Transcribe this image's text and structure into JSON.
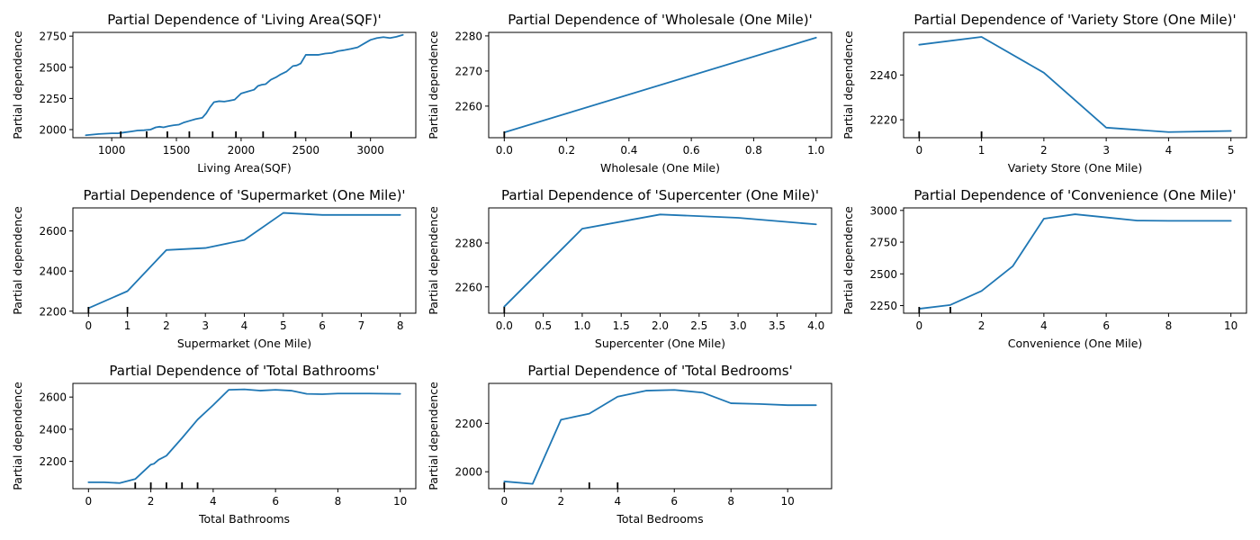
{
  "chart_data": [
    {
      "type": "line",
      "title": "Partial Dependence of 'Living Area(SQF)'",
      "xlabel": "Living Area(SQF)",
      "ylabel": "Partial dependence",
      "xlim": [
        700,
        3350
      ],
      "ylim": [
        1935,
        2780
      ],
      "xticks": [
        1000,
        1500,
        2000,
        2500,
        3000
      ],
      "yticks": [
        2000,
        2250,
        2500,
        2750
      ],
      "series": [
        {
          "color": "#1f77b4",
          "x": [
            800,
            900,
            1000,
            1050,
            1100,
            1150,
            1200,
            1250,
            1300,
            1340,
            1370,
            1400,
            1440,
            1480,
            1520,
            1560,
            1600,
            1650,
            1700,
            1730,
            1760,
            1790,
            1830,
            1870,
            1900,
            1950,
            2000,
            2050,
            2100,
            2130,
            2160,
            2190,
            2230,
            2270,
            2300,
            2350,
            2400,
            2430,
            2460,
            2500,
            2540,
            2600,
            2650,
            2700,
            2750,
            2800,
            2850,
            2900,
            2950,
            3000,
            3050,
            3100,
            3150,
            3200,
            3250
          ],
          "y": [
            1955,
            1965,
            1970,
            1970,
            1978,
            1985,
            1993,
            1995,
            2000,
            2018,
            2023,
            2018,
            2028,
            2035,
            2040,
            2058,
            2070,
            2085,
            2095,
            2130,
            2180,
            2220,
            2228,
            2225,
            2230,
            2240,
            2290,
            2305,
            2320,
            2350,
            2360,
            2365,
            2400,
            2420,
            2440,
            2465,
            2510,
            2515,
            2530,
            2600,
            2600,
            2600,
            2610,
            2615,
            2630,
            2638,
            2648,
            2660,
            2690,
            2720,
            2735,
            2742,
            2735,
            2745,
            2760
          ]
        }
      ],
      "rug": [
        1070,
        1270,
        1430,
        1600,
        1780,
        1960,
        2170,
        2420,
        2850
      ]
    },
    {
      "type": "line",
      "title": "Partial Dependence of 'Wholesale (One Mile)'",
      "xlabel": "Wholesale (One Mile)",
      "ylabel": "Partial dependence",
      "xlim": [
        -0.05,
        1.05
      ],
      "ylim": [
        2251,
        2281
      ],
      "xticks": [
        0.0,
        0.2,
        0.4,
        0.6,
        0.8,
        1.0
      ],
      "yticks": [
        2260,
        2270,
        2280
      ],
      "series": [
        {
          "color": "#1f77b4",
          "x": [
            0,
            1
          ],
          "y": [
            2252.5,
            2279.5
          ]
        }
      ],
      "rug": [
        0
      ]
    },
    {
      "type": "line",
      "title": "Partial Dependence of 'Variety Store (One Mile)'",
      "xlabel": "Variety Store (One Mile)",
      "ylabel": "Partial dependence",
      "xlim": [
        -0.25,
        5.25
      ],
      "ylim": [
        2212,
        2259
      ],
      "xticks": [
        0,
        1,
        2,
        3,
        4,
        5
      ],
      "yticks": [
        2220,
        2240
      ],
      "series": [
        {
          "color": "#1f77b4",
          "x": [
            0,
            1,
            2,
            3,
            4,
            5
          ],
          "y": [
            2253.5,
            2257,
            2241,
            2216.5,
            2214.5,
            2215
          ]
        }
      ],
      "rug": [
        0,
        1
      ]
    },
    {
      "type": "line",
      "title": "Partial Dependence of 'Supermarket (One Mile)'",
      "xlabel": "Supermarket (One Mile)",
      "ylabel": "Partial dependence",
      "xlim": [
        -0.4,
        8.4
      ],
      "ylim": [
        2190,
        2715
      ],
      "xticks": [
        0,
        1,
        2,
        3,
        4,
        5,
        6,
        7,
        8
      ],
      "yticks": [
        2200,
        2400,
        2600
      ],
      "series": [
        {
          "color": "#1f77b4",
          "x": [
            0,
            1,
            2,
            3,
            4,
            5,
            6,
            7,
            8
          ],
          "y": [
            2215,
            2300,
            2505,
            2515,
            2555,
            2690,
            2680,
            2680,
            2680
          ]
        }
      ],
      "rug": [
        0,
        1
      ]
    },
    {
      "type": "line",
      "title": "Partial Dependence of 'Supercenter (One Mile)'",
      "xlabel": "Supercenter (One Mile)",
      "ylabel": "Partial dependence",
      "xlim": [
        -0.2,
        4.2
      ],
      "ylim": [
        2248,
        2296
      ],
      "xticks": [
        0.0,
        0.5,
        1.0,
        1.5,
        2.0,
        2.5,
        3.0,
        3.5,
        4.0
      ],
      "yticks": [
        2260,
        2280
      ],
      "series": [
        {
          "color": "#1f77b4",
          "x": [
            0,
            1,
            2,
            3,
            4
          ],
          "y": [
            2251,
            2286.5,
            2293,
            2291.5,
            2288.5
          ]
        }
      ],
      "rug": [
        0
      ]
    },
    {
      "type": "line",
      "title": "Partial Dependence of 'Convenience (One Mile)'",
      "xlabel": "Convenience (One Mile)",
      "ylabel": "Partial dependence",
      "xlim": [
        -0.5,
        10.5
      ],
      "ylim": [
        2190,
        3020
      ],
      "xticks": [
        0,
        2,
        4,
        6,
        8,
        10
      ],
      "yticks": [
        2250,
        2500,
        2750,
        3000
      ],
      "series": [
        {
          "color": "#1f77b4",
          "x": [
            0,
            1,
            2,
            3,
            4,
            5,
            6,
            7,
            8,
            9,
            10
          ],
          "y": [
            2225,
            2255,
            2365,
            2560,
            2935,
            2970,
            2945,
            2920,
            2918,
            2918,
            2918
          ]
        }
      ],
      "rug": [
        0,
        1
      ]
    },
    {
      "type": "line",
      "title": "Partial Dependence of 'Total Bathrooms'",
      "xlabel": "Total Bathrooms",
      "ylabel": "Partial dependence",
      "xlim": [
        -0.5,
        10.5
      ],
      "ylim": [
        2030,
        2685
      ],
      "xticks": [
        0,
        2,
        4,
        6,
        8,
        10
      ],
      "yticks": [
        2200,
        2400,
        2600
      ],
      "series": [
        {
          "color": "#1f77b4",
          "x": [
            0,
            0.5,
            1,
            1.5,
            2,
            2.1,
            2.25,
            2.5,
            3,
            3.5,
            4,
            4.5,
            5,
            5.5,
            6,
            6.5,
            7,
            7.5,
            8,
            9,
            10
          ],
          "y": [
            2070,
            2070,
            2065,
            2090,
            2180,
            2185,
            2210,
            2235,
            2345,
            2460,
            2550,
            2645,
            2648,
            2640,
            2645,
            2640,
            2620,
            2618,
            2622,
            2622,
            2620
          ]
        }
      ],
      "rug": [
        1.5,
        2,
        2.5,
        3,
        3.5
      ]
    },
    {
      "type": "line",
      "title": "Partial Dependence of 'Total Bedrooms'",
      "xlabel": "Total Bedrooms",
      "ylabel": "Partial dependence",
      "xlim": [
        -0.55,
        11.55
      ],
      "ylim": [
        1930,
        2365
      ],
      "xticks": [
        0,
        2,
        4,
        6,
        8,
        10
      ],
      "yticks": [
        2000,
        2200
      ],
      "series": [
        {
          "color": "#1f77b4",
          "x": [
            0,
            1,
            2,
            3,
            4,
            5,
            6,
            7,
            8,
            9,
            10,
            11
          ],
          "y": [
            1960,
            1950,
            2215,
            2240,
            2310,
            2335,
            2338,
            2327,
            2283,
            2280,
            2275,
            2275
          ]
        }
      ],
      "rug": [
        0,
        3,
        4
      ]
    }
  ]
}
